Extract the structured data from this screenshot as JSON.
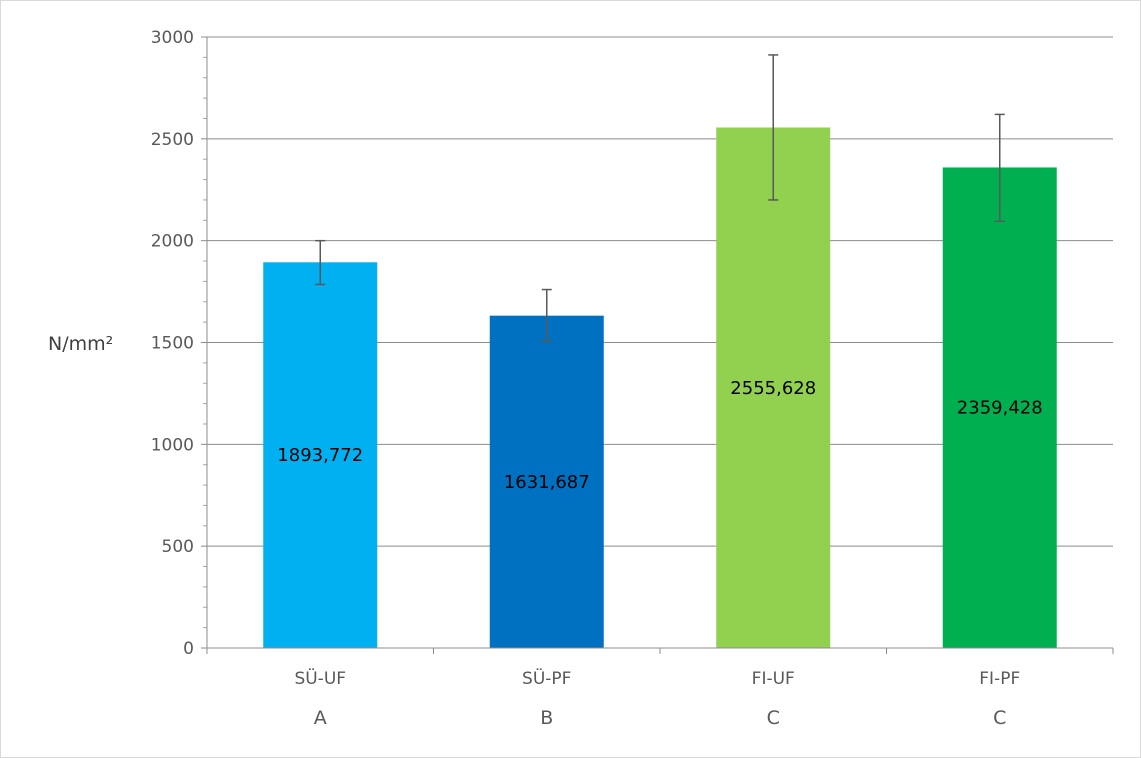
{
  "chart_data": {
    "type": "bar",
    "title": "",
    "ylabel": "N/mm²",
    "xlabel": "",
    "ylim": [
      0,
      3000
    ],
    "y_ticks": [
      0,
      500,
      1000,
      1500,
      2000,
      2500,
      3000
    ],
    "grid": true,
    "categories": [
      "SÜ-UF",
      "SÜ-PF",
      "FI-UF",
      "FI-PF"
    ],
    "groups": [
      "A",
      "B",
      "C",
      "C"
    ],
    "values": [
      1893.772,
      1631.687,
      2555.628,
      2359.428
    ],
    "value_labels": [
      "1893,772",
      "1631,687",
      "2555,628",
      "2359,428"
    ],
    "error_low": [
      1785,
      1505,
      2200,
      2095
    ],
    "error_high": [
      2000,
      1760,
      2912,
      2620
    ],
    "colors": [
      "#00b0f0",
      "#0070c0",
      "#92d050",
      "#00b050"
    ]
  }
}
